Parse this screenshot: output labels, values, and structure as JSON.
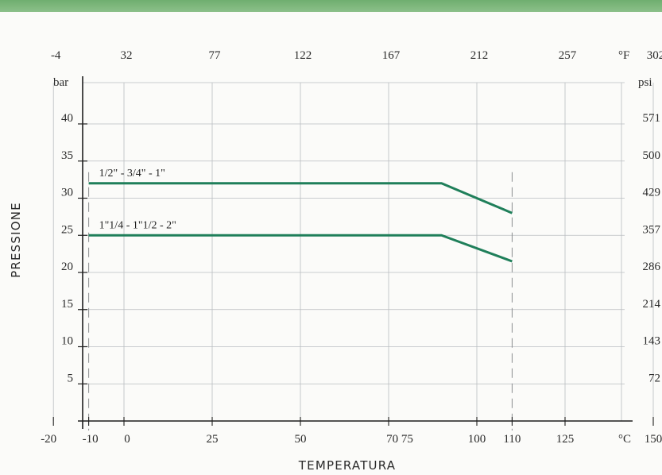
{
  "chart_data": {
    "type": "line",
    "title": "",
    "xlabel": "TEMPERATURA",
    "ylabel": "PRESSIONE",
    "x_unit": "°C",
    "x_top_unit": "°F",
    "y_unit": "bar",
    "y_right_unit": "psi",
    "xlim": [
      -30,
      170
    ],
    "ylim": [
      0,
      45
    ],
    "grid": true,
    "x_ticks": [
      -20,
      -10,
      0,
      25,
      50,
      75,
      100,
      110,
      125,
      150
    ],
    "x_tick_labels": [
      "-20",
      "-10",
      "0",
      "25",
      "50",
      "70 75",
      "100",
      "110",
      "125",
      "150"
    ],
    "x_top_ticks": [
      -20,
      0,
      25,
      50,
      75,
      100,
      125,
      150
    ],
    "x_top_tick_labels": [
      "-4",
      "32",
      "77",
      "122",
      "167",
      "212",
      "257",
      "302"
    ],
    "y_ticks": [
      5,
      10,
      15,
      20,
      25,
      30,
      35,
      40
    ],
    "y_tick_labels": [
      "5",
      "10",
      "15",
      "20",
      "25",
      "30",
      "35",
      "40"
    ],
    "y_right_ticks": [
      5,
      10,
      15,
      20,
      25,
      30,
      35,
      40
    ],
    "y_right_tick_labels": [
      "72",
      "143",
      "214",
      "286",
      "357",
      "429",
      "500",
      "571"
    ],
    "series": [
      {
        "name": "1/2\" - 3/4\" - 1\"",
        "color": "#1f7f5a",
        "x": [
          -10,
          90,
          110
        ],
        "y": [
          32,
          32,
          28
        ]
      },
      {
        "name": "1\"1/4 - 1\"1/2 - 2\"",
        "color": "#1f7f5a",
        "x": [
          -10,
          90,
          110
        ],
        "y": [
          25,
          25,
          21.5
        ]
      }
    ],
    "dashed_verticals": [
      -10,
      110
    ]
  }
}
